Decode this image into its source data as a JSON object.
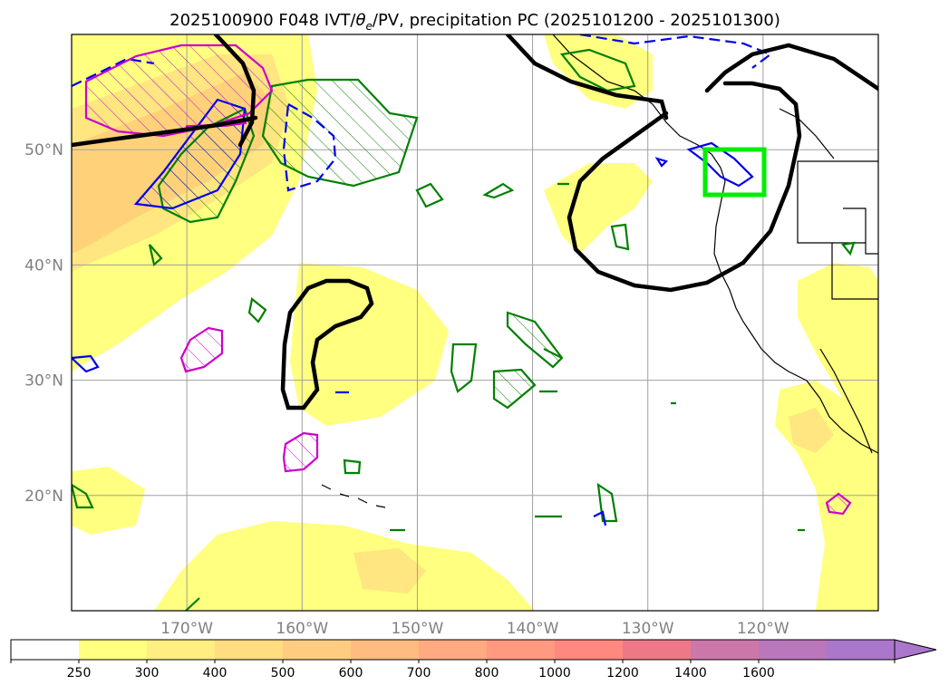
{
  "title": "2025100900 F048 IVT/θe/PV, precipitation PC (2025101200 - 2025101300)",
  "title_parts": {
    "pre": "2025100900 F048 IVT/",
    "theta": "θ",
    "sub": "e",
    "post": "/PV, precipitation PC (2025101200 - 2025101300)"
  },
  "map": {
    "lon_range": [
      -180,
      -110
    ],
    "lat_range": [
      10,
      60
    ],
    "lon_ticks": [
      {
        "value": -170,
        "label": "170°W"
      },
      {
        "value": -160,
        "label": "160°W"
      },
      {
        "value": -150,
        "label": "150°W"
      },
      {
        "value": -140,
        "label": "140°W"
      },
      {
        "value": -130,
        "label": "130°W"
      },
      {
        "value": -120,
        "label": "120°W"
      }
    ],
    "lat_ticks": [
      {
        "value": 50,
        "label": "50°N"
      },
      {
        "value": 40,
        "label": "40°N"
      },
      {
        "value": 30,
        "label": "30°N"
      },
      {
        "value": 20,
        "label": "20°N"
      }
    ],
    "grid": true,
    "highlight_box": {
      "lon": [
        -125,
        -120
      ],
      "lat": [
        46,
        50
      ],
      "color": "#00ee00"
    }
  },
  "colorbar": {
    "levels": [
      250,
      300,
      400,
      500,
      600,
      700,
      800,
      1000,
      1200,
      1400,
      1600
    ],
    "labels": [
      "250",
      "300",
      "400",
      "500",
      "600",
      "700",
      "800",
      "1000",
      "1200",
      "1400",
      "1600"
    ],
    "colors": [
      "#ffff80",
      "#ffee80",
      "#ffdd80",
      "#ffcc80",
      "#ffbb80",
      "#ffaa80",
      "#ff9980",
      "#ff8880",
      "#ee7788",
      "#cc77aa",
      "#bb77bb",
      "#aa77cc"
    ],
    "under_color": "#ffffff",
    "extend": "max"
  },
  "colors": {
    "ivt_fill_1": "#ffff80",
    "ivt_fill_2": "#ffee80",
    "ivt_fill_3": "#ffd880",
    "theta_e": "#000000",
    "pv_green": "#008000",
    "pv_blue": "#0000ee",
    "pv_magenta": "#cc00cc",
    "coast": "#000000"
  }
}
